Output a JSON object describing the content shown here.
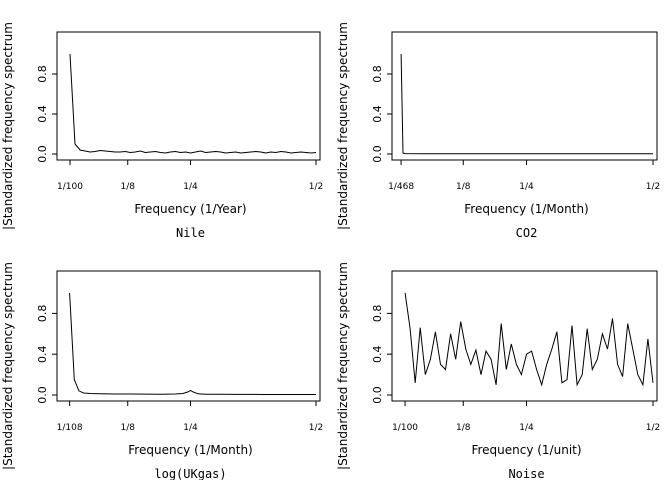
{
  "chart_data": [
    {
      "type": "line",
      "panel": "top-left",
      "caption": "Nile",
      "xlabel": "Frequency (1/Year)",
      "ylabel": "|Standardized frequency spectrum",
      "xlim": [
        0.0,
        0.5
      ],
      "ylim": [
        0,
        1
      ],
      "yticks": [
        0.0,
        0.4,
        0.8
      ],
      "ytick_labels": [
        "0.0",
        "0.4",
        "0.8"
      ],
      "xticks": [
        0.01,
        0.125,
        0.25,
        0.5
      ],
      "xtick_labels": [
        "1/100",
        "1/8",
        "1/4",
        "1/2"
      ],
      "x": [
        0.01,
        0.02,
        0.03,
        0.04,
        0.05,
        0.06,
        0.07,
        0.08,
        0.09,
        0.1,
        0.11,
        0.12,
        0.13,
        0.14,
        0.15,
        0.16,
        0.17,
        0.18,
        0.19,
        0.2,
        0.21,
        0.22,
        0.23,
        0.24,
        0.25,
        0.26,
        0.27,
        0.28,
        0.29,
        0.3,
        0.31,
        0.32,
        0.33,
        0.34,
        0.35,
        0.36,
        0.37,
        0.38,
        0.39,
        0.4,
        0.41,
        0.42,
        0.43,
        0.44,
        0.45,
        0.46,
        0.47,
        0.48,
        0.49,
        0.5
      ],
      "values": [
        1.0,
        0.1,
        0.04,
        0.03,
        0.02,
        0.025,
        0.035,
        0.03,
        0.025,
        0.02,
        0.02,
        0.025,
        0.015,
        0.02,
        0.03,
        0.015,
        0.02,
        0.025,
        0.015,
        0.01,
        0.02,
        0.025,
        0.015,
        0.02,
        0.01,
        0.02,
        0.03,
        0.015,
        0.02,
        0.025,
        0.02,
        0.01,
        0.015,
        0.02,
        0.01,
        0.015,
        0.02,
        0.025,
        0.02,
        0.01,
        0.02,
        0.015,
        0.025,
        0.02,
        0.01,
        0.015,
        0.02,
        0.015,
        0.01,
        0.015
      ]
    },
    {
      "type": "line",
      "panel": "top-right",
      "caption": "CO2",
      "xlabel": "Frequency (1/Month)",
      "ylabel": "|Standardized frequency spectrum",
      "xlim": [
        0.0,
        0.5
      ],
      "ylim": [
        0,
        1
      ],
      "yticks": [
        0.0,
        0.4,
        0.8
      ],
      "ytick_labels": [
        "0.0",
        "0.4",
        "0.8"
      ],
      "xticks": [
        0.002137,
        0.125,
        0.25,
        0.5
      ],
      "xtick_labels": [
        "1/468",
        "1/8",
        "1/4",
        "1/2"
      ],
      "x": [
        0.002137,
        0.006,
        0.01,
        0.05,
        0.1,
        0.15,
        0.2,
        0.25,
        0.3,
        0.35,
        0.4,
        0.45,
        0.5
      ],
      "values": [
        1.0,
        0.01,
        0.004,
        0.003,
        0.002,
        0.002,
        0.002,
        0.002,
        0.002,
        0.002,
        0.002,
        0.002,
        0.002
      ]
    },
    {
      "type": "line",
      "panel": "bottom-left",
      "caption": "log(UKgas)",
      "xlabel": "Frequency (1/Month)",
      "ylabel": "|Standardized frequency spectrum",
      "xlim": [
        0.0,
        0.5
      ],
      "ylim": [
        0,
        1
      ],
      "yticks": [
        0.0,
        0.4,
        0.8
      ],
      "ytick_labels": [
        "0.0",
        "0.4",
        "0.8"
      ],
      "xticks": [
        0.009259,
        0.125,
        0.25,
        0.5
      ],
      "xtick_labels": [
        "1/108",
        "1/8",
        "1/4",
        "1/2"
      ],
      "x": [
        0.009259,
        0.0185,
        0.0278,
        0.037,
        0.05,
        0.07,
        0.1,
        0.13,
        0.16,
        0.19,
        0.22,
        0.235,
        0.245,
        0.25,
        0.255,
        0.265,
        0.28,
        0.31,
        0.34,
        0.37,
        0.4,
        0.43,
        0.46,
        0.5
      ],
      "values": [
        1.0,
        0.15,
        0.04,
        0.02,
        0.015,
        0.012,
        0.01,
        0.01,
        0.009,
        0.008,
        0.01,
        0.015,
        0.03,
        0.045,
        0.03,
        0.012,
        0.008,
        0.007,
        0.006,
        0.006,
        0.005,
        0.005,
        0.005,
        0.005
      ]
    },
    {
      "type": "line",
      "panel": "bottom-right",
      "caption": "Noise",
      "xlabel": "Frequency (1/unit)",
      "ylabel": "|Standardized frequency spectrum",
      "xlim": [
        0.0,
        0.5
      ],
      "ylim": [
        0,
        1
      ],
      "yticks": [
        0.0,
        0.4,
        0.8
      ],
      "ytick_labels": [
        "0.0",
        "0.4",
        "0.8"
      ],
      "xticks": [
        0.01,
        0.125,
        0.25,
        0.5
      ],
      "xtick_labels": [
        "1/100",
        "1/8",
        "1/4",
        "1/2"
      ],
      "x": [
        0.01,
        0.02,
        0.03,
        0.04,
        0.05,
        0.06,
        0.07,
        0.08,
        0.09,
        0.1,
        0.11,
        0.12,
        0.13,
        0.14,
        0.15,
        0.16,
        0.17,
        0.18,
        0.19,
        0.2,
        0.21,
        0.22,
        0.23,
        0.24,
        0.25,
        0.26,
        0.27,
        0.28,
        0.29,
        0.3,
        0.31,
        0.32,
        0.33,
        0.34,
        0.35,
        0.36,
        0.37,
        0.38,
        0.39,
        0.4,
        0.41,
        0.42,
        0.43,
        0.44,
        0.45,
        0.46,
        0.47,
        0.48,
        0.49,
        0.5
      ],
      "values": [
        1.0,
        0.65,
        0.12,
        0.66,
        0.2,
        0.35,
        0.62,
        0.3,
        0.25,
        0.6,
        0.35,
        0.72,
        0.45,
        0.3,
        0.44,
        0.2,
        0.43,
        0.35,
        0.1,
        0.7,
        0.25,
        0.5,
        0.3,
        0.2,
        0.4,
        0.43,
        0.25,
        0.1,
        0.3,
        0.45,
        0.62,
        0.12,
        0.15,
        0.68,
        0.1,
        0.2,
        0.65,
        0.25,
        0.35,
        0.6,
        0.45,
        0.75,
        0.3,
        0.18,
        0.7,
        0.45,
        0.2,
        0.1,
        0.55,
        0.12
      ]
    }
  ]
}
